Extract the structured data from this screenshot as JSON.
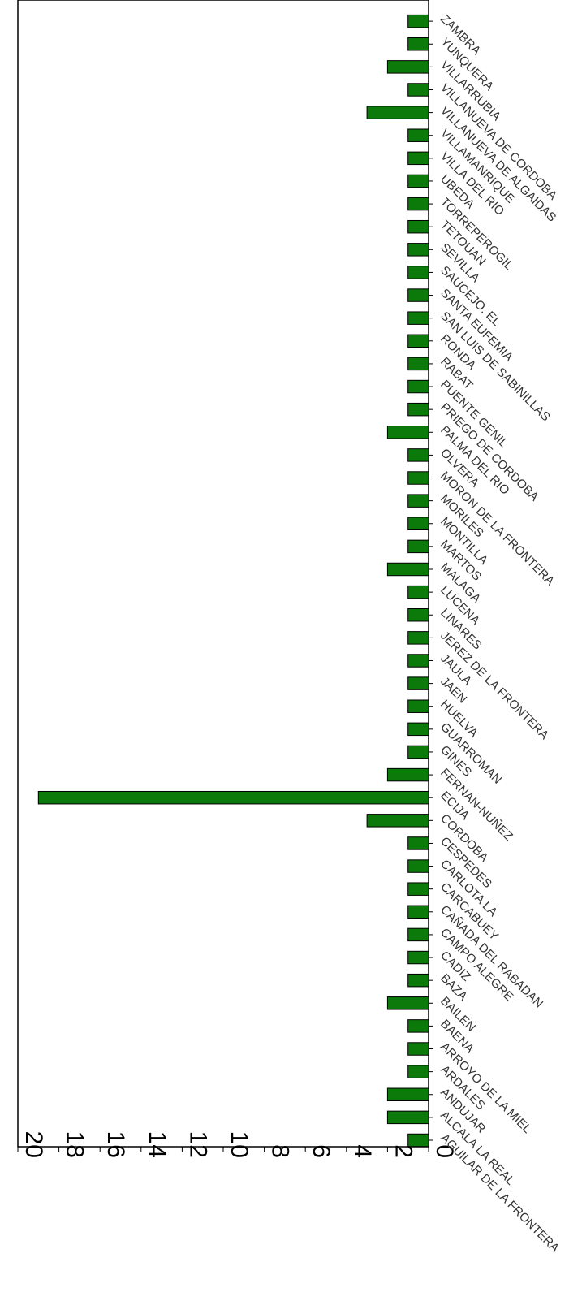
{
  "chart_data": {
    "type": "bar",
    "orientation": "horizontal (page rotated 90 degrees)",
    "title": "",
    "xlabel": "",
    "ylabel": "",
    "ylim": [
      0,
      20
    ],
    "yticks": [
      "20",
      "18",
      "16",
      "14",
      "12",
      "10",
      "8",
      "6",
      "4",
      "2",
      "0"
    ],
    "grid": false,
    "legend": "none",
    "bar_color": "#0b7a0b",
    "categories": [
      "AGUILAR DE LA FRONTERA",
      "ALCALA LA REAL",
      "ANDUJAR",
      "ARDALES",
      "ARROYO DE LA MIEL",
      "BAENA",
      "BAILEN",
      "BAZA",
      "CADIZ",
      "CAMPO ALEGRE",
      "CAÑADA DEL RABADAN",
      "CARCABUEY",
      "CARLOTA LA",
      "CESPEDES",
      "CORDOBA",
      "ECIJA",
      "FERNAN-NUÑEZ",
      "GINES",
      "GUARROMAN",
      "HUELVA",
      "JAEN",
      "JAULA",
      "JEREZ DE LA FRONTERA",
      "LINARES",
      "LUCENA",
      "MALAGA",
      "MARTOS",
      "MONTILLA",
      "MORILES",
      "MORON DE LA FRONTERA",
      "OLVERA",
      "PALMA DEL RIO",
      "PRIEGO DE CORDOBA",
      "PUENTE GENIL",
      "RABAT",
      "RONDA",
      "SAN LUIS DE SABINILLAS",
      "SANTA EUFEMIA",
      "SAUCEJO, EL",
      "SEVILLA",
      "TETOUAN",
      "TORREPEROGIL",
      "UBEDA",
      "VILLA DEL RIO",
      "VILLAMANRIQUE",
      "VILLANUEVA DE ALGAIDAS",
      "VILLANUEVA DE CORDOBA",
      "VILLARRUBIA",
      "YUNQUERA",
      "ZAMBRA"
    ],
    "values": [
      1,
      2,
      2,
      1,
      1,
      1,
      2,
      1,
      1,
      1,
      1,
      1,
      1,
      1,
      3,
      19,
      2,
      1,
      1,
      1,
      1,
      1,
      1,
      1,
      1,
      2,
      1,
      1,
      1,
      1,
      1,
      2,
      1,
      1,
      1,
      1,
      1,
      1,
      1,
      1,
      1,
      1,
      1,
      1,
      1,
      3,
      1,
      2,
      1,
      1
    ]
  }
}
